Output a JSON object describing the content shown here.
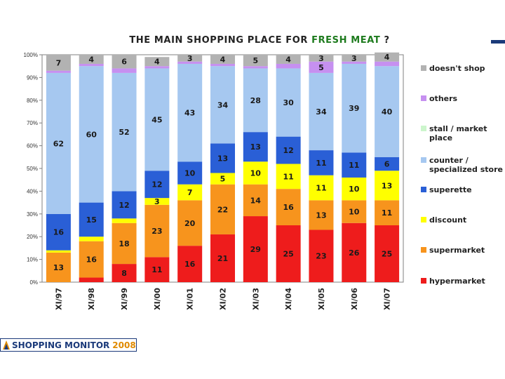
{
  "page": {
    "logo_name": "SHOPPING MONITOR",
    "logo_year": "2008"
  },
  "colors": {
    "accent": "#1b3a7a",
    "title_highlight": "#1e7b1e"
  },
  "chart_data": {
    "type": "bar",
    "stacked": true,
    "title_parts": {
      "before": "THE MAIN SHOPPING PLACE FOR ",
      "highlight": "FRESH MEAT",
      "after": " ?"
    },
    "categories": [
      "XI/97",
      "XI/98",
      "XI/99",
      "XI/00",
      "XI/01",
      "XI/02",
      "XI/03",
      "XI/04",
      "XI/05",
      "XI/06",
      "XI/07"
    ],
    "ylim": [
      0,
      100
    ],
    "yticks": [
      "0%",
      "10%",
      "20%",
      "30%",
      "40%",
      "50%",
      "60%",
      "70%",
      "80%",
      "90%",
      "100%"
    ],
    "series": [
      {
        "name": "hypermarket",
        "color": "#ee1c1c",
        "values": [
          0,
          2,
          8,
          11,
          16,
          21,
          29,
          25,
          23,
          26,
          25
        ],
        "labels": [
          "",
          "",
          "8",
          "11",
          "16",
          "21",
          "29",
          "25",
          "23",
          "26",
          "25"
        ]
      },
      {
        "name": "supermarket",
        "color": "#f7941d",
        "values": [
          13,
          16,
          18,
          23,
          20,
          22,
          14,
          16,
          13,
          10,
          11
        ],
        "labels": [
          "13",
          "16",
          "18",
          "23",
          "20",
          "22",
          "14",
          "16",
          "13",
          "10",
          "11"
        ]
      },
      {
        "name": "discount",
        "color": "#ffff00",
        "values": [
          1,
          2,
          2,
          3,
          7,
          5,
          10,
          11,
          11,
          10,
          13
        ],
        "labels": [
          "",
          "",
          "",
          "3",
          "7",
          "5",
          "10",
          "11",
          "11",
          "10",
          "13"
        ]
      },
      {
        "name": "superette",
        "color": "#2a5fd6",
        "values": [
          16,
          15,
          12,
          12,
          10,
          13,
          13,
          12,
          11,
          11,
          6
        ],
        "labels": [
          "16",
          "15",
          "12",
          "12",
          "10",
          "13",
          "13",
          "12",
          "11",
          "11",
          "6"
        ]
      },
      {
        "name": "counter / specialized store",
        "color": "#a6c8f0",
        "values": [
          62,
          60,
          52,
          45,
          43,
          34,
          28,
          30,
          34,
          39,
          40
        ],
        "labels": [
          "62",
          "60",
          "52",
          "45",
          "43",
          "34",
          "28",
          "30",
          "34",
          "39",
          "40"
        ]
      },
      {
        "name": "stall / market place",
        "color": "#ccf5cc",
        "values": [
          0,
          0,
          0,
          0,
          0,
          0,
          0,
          0,
          0,
          0,
          0
        ],
        "labels": [
          "",
          "",
          "",
          "",
          "",
          "",
          "",
          "",
          "",
          "",
          ""
        ]
      },
      {
        "name": "others",
        "color": "#c690f0",
        "values": [
          1,
          1,
          2,
          1,
          1,
          1,
          1,
          2,
          5,
          1,
          2
        ],
        "labels": [
          "",
          "",
          "",
          "",
          "",
          "",
          "",
          "",
          "5",
          "",
          ""
        ]
      },
      {
        "name": "doesn't shop",
        "color": "#b2b2b2",
        "values": [
          7,
          4,
          6,
          4,
          3,
          4,
          5,
          4,
          3,
          3,
          4
        ],
        "labels": [
          "7",
          "4",
          "6",
          "4",
          "3",
          "4",
          "5",
          "4",
          "3",
          "3",
          "4"
        ]
      }
    ],
    "legend": [
      {
        "label": "doesn't shop",
        "color": "#b2b2b2"
      },
      {
        "label": "others",
        "color": "#c690f0"
      },
      {
        "label": "stall / market\nplace",
        "color": "#ccf5cc"
      },
      {
        "label": "counter /\nspecialized store",
        "color": "#a6c8f0"
      },
      {
        "label": "superette",
        "color": "#2a5fd6"
      },
      {
        "label": "discount",
        "color": "#ffff00"
      },
      {
        "label": "supermarket",
        "color": "#f7941d"
      },
      {
        "label": "hypermarket",
        "color": "#ee1c1c"
      }
    ]
  }
}
